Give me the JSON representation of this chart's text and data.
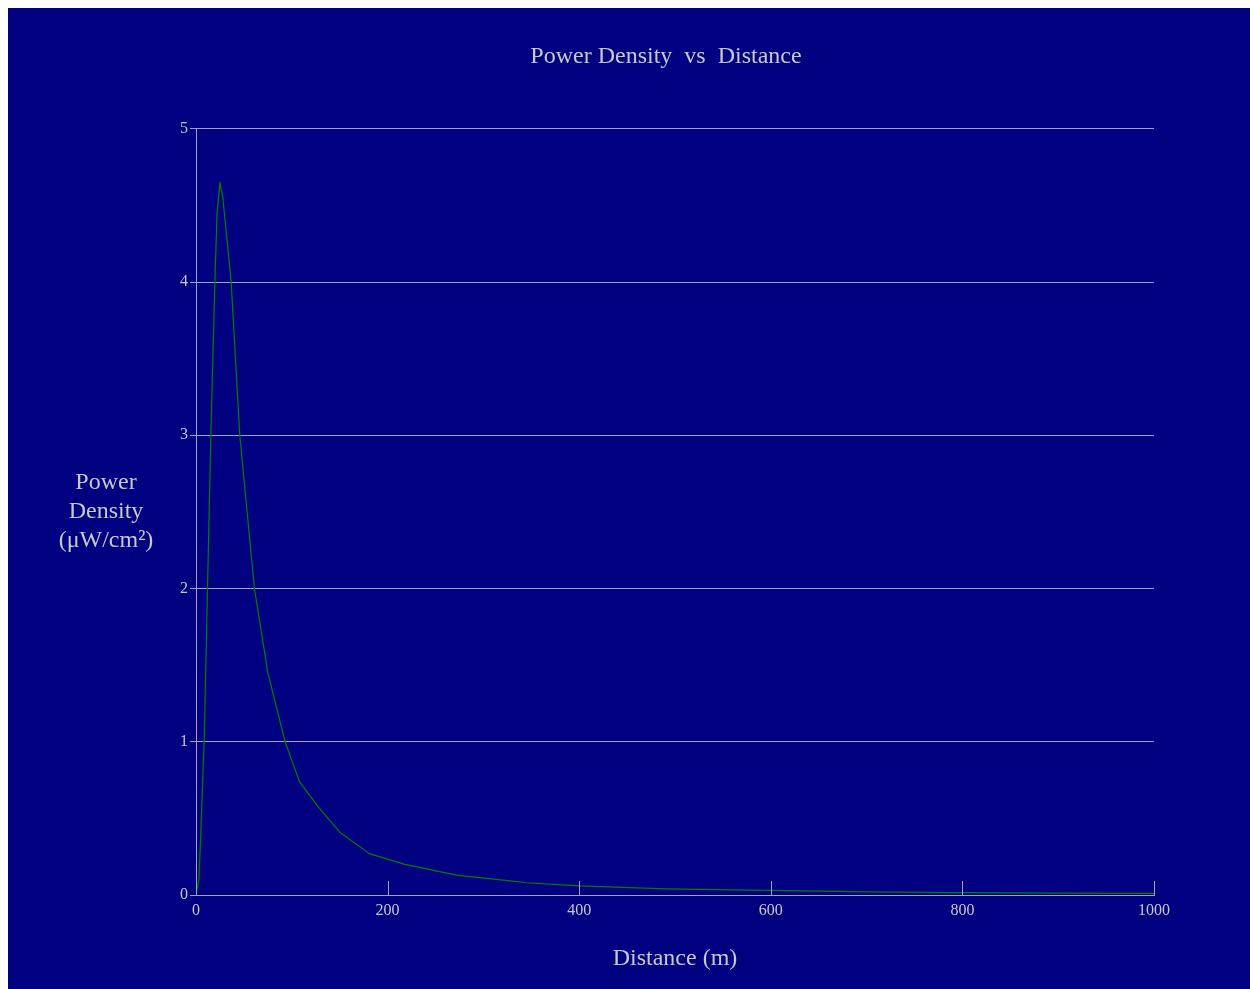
{
  "chart_data": {
    "type": "line",
    "title": "Power Density  vs  Distance",
    "xlabel": "Distance (m)",
    "ylabel": "Power Density (μW/cm²)",
    "x": [
      0,
      3,
      5,
      8.5,
      12,
      15.5,
      19.7,
      22,
      25,
      28,
      32,
      36.7,
      45.7,
      61,
      75,
      93,
      108,
      127,
      150,
      181,
      218,
      272,
      345,
      400,
      491,
      600,
      700,
      800,
      900,
      1000
    ],
    "series": [
      {
        "color": "#008000",
        "values": [
          0,
          0.1,
          0.4,
          1,
          2,
          3,
          4,
          4.45,
          4.65,
          4.55,
          4.3,
          4,
          3,
          2,
          1.45,
          1,
          0.74,
          0.58,
          0.41,
          0.27,
          0.2,
          0.13,
          0.08,
          0.06,
          0.04,
          0.03,
          0.02,
          0.015,
          0.012,
          0.01
        ]
      }
    ],
    "xlim": [
      0,
      1000
    ],
    "xticks": [
      0,
      200,
      400,
      600,
      800,
      1000
    ],
    "ylim": [
      0,
      5
    ],
    "yticks": [
      0,
      1,
      2,
      3,
      4,
      5
    ],
    "grid": "y",
    "legend": false,
    "marker": "none",
    "line_style": "solid"
  }
}
